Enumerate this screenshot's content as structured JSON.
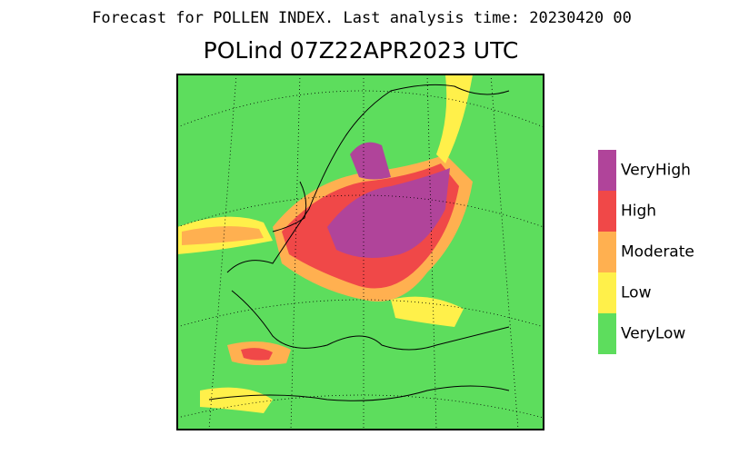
{
  "header": {
    "title": "Forecast for POLLEN INDEX. Last analysis time: 20230420 00",
    "subtitle": "POLind 07Z22APR2023 UTC"
  },
  "legend": {
    "items": [
      {
        "label": "VeryHigh",
        "color": "#b0449a"
      },
      {
        "label": "High",
        "color": "#f04848"
      },
      {
        "label": "Moderate",
        "color": "#ffb050"
      },
      {
        "label": "Low",
        "color": "#fff04a"
      },
      {
        "label": "VeryLow",
        "color": "#5ddd5d"
      }
    ]
  }
}
